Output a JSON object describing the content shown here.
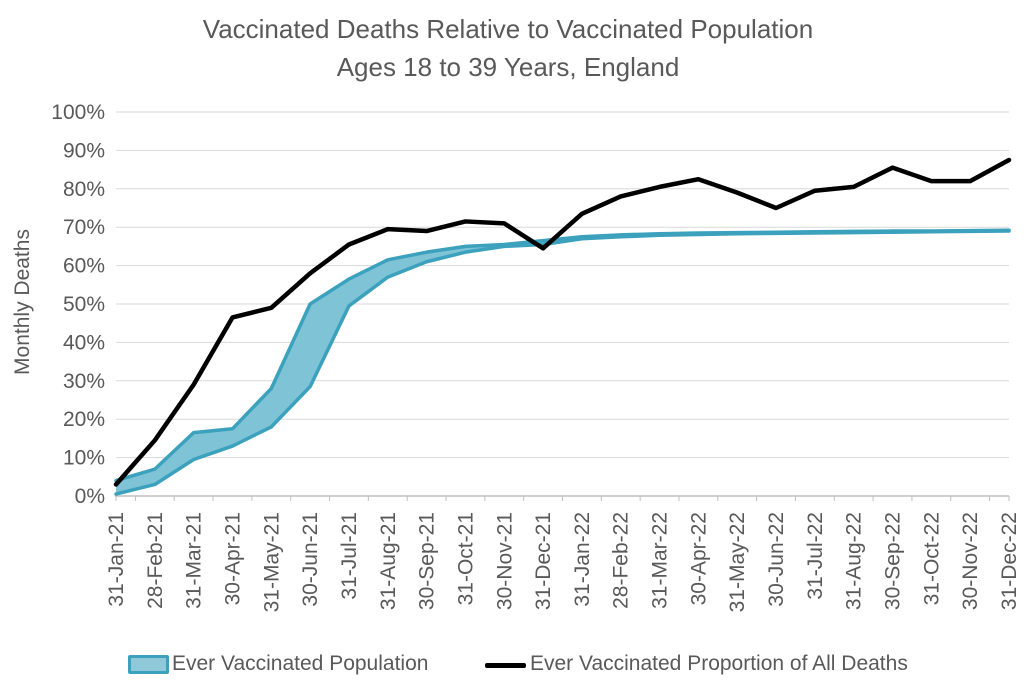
{
  "title": {
    "line1": "Vaccinated Deaths Relative to Vaccinated Population",
    "line2": "Ages 18 to 39 Years, England"
  },
  "y_axis": {
    "label": "Monthly Deaths",
    "tick_labels": [
      "100%",
      "90%",
      "80%",
      "70%",
      "60%",
      "50%",
      "40%",
      "30%",
      "20%",
      "10%",
      "0%"
    ]
  },
  "legend": {
    "band_label": "Ever Vaccinated Population",
    "line_label": "Ever Vaccinated Proportion of All Deaths"
  },
  "colors": {
    "band_fill": "#7ec3d6",
    "band_edge": "#3ba1bd",
    "line": "#000000",
    "grid": "#d9d9d9",
    "axis": "#bfbfbf",
    "text": "#595959",
    "legend_swatch_fill": "#8fc9d9"
  },
  "chart_data": {
    "type": "area",
    "title": "Vaccinated Deaths Relative to Vaccinated Population",
    "subtitle": "Ages 18 to 39 Years, England",
    "xlabel": "",
    "ylabel": "Monthly Deaths",
    "ylim": [
      0,
      100
    ],
    "ytick_step": 10,
    "grid": true,
    "legend_position": "bottom",
    "categories": [
      "31-Jan-21",
      "28-Feb-21",
      "31-Mar-21",
      "30-Apr-21",
      "31-May-21",
      "30-Jun-21",
      "31-Jul-21",
      "31-Aug-21",
      "30-Sep-21",
      "31-Oct-21",
      "30-Nov-21",
      "31-Dec-21",
      "31-Jan-22",
      "28-Feb-22",
      "31-Mar-22",
      "30-Apr-22",
      "31-May-22",
      "30-Jun-22",
      "31-Jul-22",
      "31-Aug-22",
      "30-Sep-22",
      "31-Oct-22",
      "30-Nov-22",
      "31-Dec-22"
    ],
    "series": [
      {
        "name": "Ever Vaccinated Population",
        "type": "band",
        "upper": [
          4,
          7,
          16.5,
          17.5,
          28,
          50,
          56.5,
          61.5,
          63.5,
          65,
          65.5,
          66.5,
          67.5,
          68,
          68.3,
          68.5,
          68.6,
          68.7,
          68.8,
          68.9,
          69,
          69,
          69.1,
          69.2
        ],
        "lower": [
          0.5,
          3,
          9.5,
          13,
          18,
          28.5,
          49.5,
          57,
          61,
          63.5,
          65,
          65.5,
          67,
          67.5,
          67.9,
          68.1,
          68.3,
          68.4,
          68.5,
          68.6,
          68.7,
          68.8,
          68.9,
          69
        ]
      },
      {
        "name": "Ever Vaccinated Proportion of All Deaths",
        "type": "line",
        "values": [
          3,
          14.5,
          29,
          46.5,
          49,
          58,
          65.5,
          69.5,
          69,
          71.5,
          71,
          64.5,
          73.5,
          78,
          80.5,
          82.5,
          79,
          75,
          79.5,
          80.5,
          85.5,
          82,
          82,
          87.5
        ]
      }
    ]
  }
}
